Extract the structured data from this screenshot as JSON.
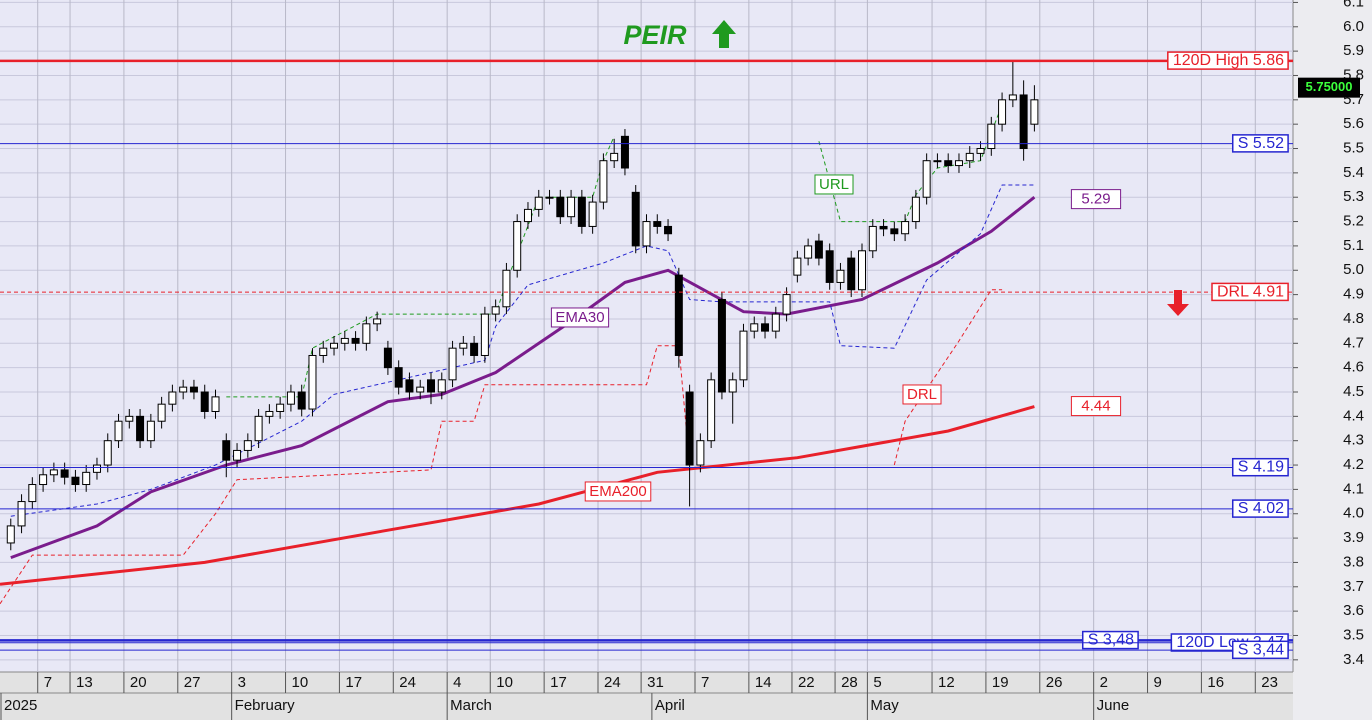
{
  "chart_data": {
    "type": "candlestick",
    "title": "PEIR",
    "open": [
      3.88,
      3.95,
      4.05,
      4.12,
      4.16,
      4.18,
      4.15,
      4.12,
      4.17,
      4.2,
      4.3,
      4.38,
      4.4,
      4.3,
      4.38,
      4.45,
      4.5,
      4.52,
      4.5,
      4.42,
      4.3,
      4.22,
      4.26,
      4.3,
      4.4,
      4.42,
      4.45,
      4.5,
      4.43,
      4.65,
      4.68,
      4.7,
      4.72,
      4.7,
      4.78,
      4.68,
      4.6,
      4.55,
      4.5,
      4.55,
      4.5,
      4.55,
      4.68,
      4.7,
      4.65,
      4.82,
      4.85,
      5.0,
      5.2,
      5.25,
      5.3,
      5.3,
      5.22,
      5.3,
      5.18,
      5.28,
      5.45,
      5.55,
      5.32,
      5.1,
      5.2,
      5.18,
      4.98,
      4.5,
      4.2,
      4.3,
      4.88,
      4.5,
      4.55,
      4.75,
      4.78,
      4.75,
      4.82,
      4.98,
      5.05,
      5.12,
      5.08,
      4.95,
      5.05,
      4.92,
      5.08,
      5.18,
      5.17,
      5.15,
      5.2,
      5.3,
      5.45,
      5.45,
      5.43,
      5.45,
      5.48,
      5.5,
      5.6,
      5.7,
      5.72,
      5.6
    ],
    "high": [
      3.98,
      4.08,
      4.15,
      4.19,
      4.21,
      4.21,
      4.18,
      4.2,
      4.23,
      4.33,
      4.41,
      4.43,
      4.43,
      4.41,
      4.48,
      4.53,
      4.55,
      4.55,
      4.53,
      4.51,
      4.33,
      4.29,
      4.33,
      4.43,
      4.45,
      4.48,
      4.53,
      4.53,
      4.68,
      4.71,
      4.73,
      4.75,
      4.75,
      4.81,
      4.83,
      4.71,
      4.63,
      4.58,
      4.55,
      4.58,
      4.58,
      4.71,
      4.73,
      4.73,
      4.85,
      4.88,
      5.03,
      5.23,
      5.28,
      5.33,
      5.33,
      5.33,
      5.33,
      5.33,
      5.31,
      5.48,
      5.54,
      5.58,
      5.35,
      5.23,
      5.23,
      5.21,
      5.01,
      4.53,
      4.33,
      4.58,
      4.91,
      4.58,
      4.78,
      4.81,
      4.81,
      4.85,
      4.93,
      5.08,
      5.13,
      5.15,
      5.11,
      5.03,
      5.08,
      5.11,
      5.21,
      5.21,
      5.2,
      5.23,
      5.33,
      5.48,
      5.48,
      5.48,
      5.48,
      5.51,
      5.53,
      5.63,
      5.73,
      5.86,
      5.78,
      5.76
    ],
    "low": [
      3.85,
      3.92,
      4.02,
      4.09,
      4.13,
      4.12,
      4.09,
      4.09,
      4.14,
      4.17,
      4.27,
      4.35,
      4.27,
      4.27,
      4.35,
      4.42,
      4.47,
      4.47,
      4.39,
      4.39,
      4.15,
      4.19,
      4.23,
      4.27,
      4.37,
      4.39,
      4.42,
      4.4,
      4.4,
      4.62,
      4.65,
      4.67,
      4.67,
      4.67,
      4.75,
      4.57,
      4.49,
      4.47,
      4.47,
      4.45,
      4.47,
      4.52,
      4.65,
      4.62,
      4.62,
      4.79,
      4.82,
      4.97,
      5.17,
      5.22,
      5.27,
      5.19,
      5.19,
      5.15,
      5.15,
      5.25,
      5.42,
      5.39,
      5.07,
      5.07,
      5.15,
      5.12,
      4.6,
      4.03,
      4.17,
      4.27,
      4.47,
      4.37,
      4.52,
      4.72,
      4.72,
      4.72,
      4.79,
      4.95,
      5.02,
      5.02,
      4.92,
      4.92,
      4.89,
      4.89,
      5.05,
      5.14,
      5.12,
      5.12,
      5.17,
      5.27,
      5.42,
      5.4,
      5.4,
      5.42,
      5.45,
      5.47,
      5.57,
      5.67,
      5.45,
      5.57
    ],
    "close": [
      3.95,
      4.05,
      4.12,
      4.16,
      4.18,
      4.15,
      4.12,
      4.17,
      4.2,
      4.3,
      4.38,
      4.4,
      4.3,
      4.38,
      4.45,
      4.5,
      4.52,
      4.5,
      4.42,
      4.48,
      4.22,
      4.26,
      4.3,
      4.4,
      4.42,
      4.45,
      4.5,
      4.43,
      4.65,
      4.68,
      4.7,
      4.72,
      4.7,
      4.78,
      4.8,
      4.6,
      4.52,
      4.5,
      4.52,
      4.5,
      4.55,
      4.68,
      4.7,
      4.65,
      4.82,
      4.85,
      5.0,
      5.2,
      5.25,
      5.3,
      5.3,
      5.22,
      5.3,
      5.18,
      5.28,
      5.45,
      5.48,
      5.42,
      5.1,
      5.2,
      5.18,
      5.15,
      4.65,
      4.2,
      4.3,
      4.55,
      4.5,
      4.55,
      4.75,
      4.78,
      4.75,
      4.82,
      4.9,
      5.05,
      5.1,
      5.05,
      4.95,
      5.0,
      4.92,
      5.08,
      5.18,
      5.17,
      5.15,
      5.2,
      5.3,
      5.45,
      5.45,
      5.43,
      5.45,
      5.48,
      5.5,
      5.6,
      5.7,
      5.72,
      5.5,
      5.7
    ],
    "xlim": [
      -1,
      119
    ],
    "xticks": [
      {
        "value": 2.5,
        "label": "7"
      },
      {
        "value": 5.5,
        "label": "13"
      },
      {
        "value": 10.5,
        "label": "20"
      },
      {
        "value": 15.5,
        "label": "27"
      },
      {
        "value": 20.5,
        "label": "3"
      },
      {
        "value": 25.5,
        "label": "10"
      },
      {
        "value": 30.5,
        "label": "17"
      },
      {
        "value": 35.5,
        "label": "24"
      },
      {
        "value": 40.5,
        "label": "4"
      },
      {
        "value": 44.5,
        "label": "10"
      },
      {
        "value": 49.5,
        "label": "17"
      },
      {
        "value": 54.5,
        "label": "24"
      },
      {
        "value": 58.5,
        "label": "31"
      },
      {
        "value": 63.5,
        "label": "7"
      },
      {
        "value": 68.5,
        "label": "14"
      },
      {
        "value": 72.5,
        "label": "22"
      },
      {
        "value": 76.5,
        "label": "28"
      },
      {
        "value": 79.5,
        "label": "5"
      },
      {
        "value": 85.5,
        "label": "12"
      },
      {
        "value": 90.5,
        "label": "19"
      },
      {
        "value": 95.5,
        "label": "26"
      },
      {
        "value": 100.5,
        "label": "2"
      },
      {
        "value": 105.5,
        "label": "9"
      },
      {
        "value": 110.5,
        "label": "16"
      },
      {
        "value": 115.5,
        "label": "23"
      }
    ],
    "month_ticks": [
      {
        "value": -1,
        "label": "2025"
      },
      {
        "value": 20.5,
        "label": "February"
      },
      {
        "value": 40.5,
        "label": "March"
      },
      {
        "value": 59.5,
        "label": "April"
      },
      {
        "value": 79.5,
        "label": "May"
      },
      {
        "value": 100.5,
        "label": "June"
      }
    ],
    "ylim": [
      3.35,
      6.11
    ],
    "yticks": [
      3.4,
      3.5,
      3.6,
      3.7,
      3.8,
      3.9,
      {
        "value": 4,
        "label": "4.0"
      },
      4.1,
      4.2,
      4.3,
      4.4,
      4.5,
      4.6,
      4.7,
      4.8,
      4.9,
      {
        "value": 5,
        "label": "5.0"
      },
      5.1,
      5.2,
      5.3,
      5.4,
      5.5,
      5.6,
      5.7,
      5.8,
      5.9,
      {
        "value": 6,
        "label": "6.0"
      },
      6.1
    ],
    "grid": true,
    "lines": [
      {
        "name": "EMA30",
        "color": "#7a1c8c",
        "width": 3,
        "x": [
          0,
          8,
          13,
          20,
          27,
          35,
          40,
          45,
          52,
          57,
          61,
          68,
          72,
          79,
          86,
          91,
          95
        ],
        "values": [
          3.82,
          3.95,
          4.09,
          4.2,
          4.28,
          4.46,
          4.49,
          4.58,
          4.79,
          4.95,
          5.0,
          4.83,
          4.82,
          4.88,
          5.03,
          5.16,
          5.3
        ],
        "end_label": 5.29
      },
      {
        "name": "EMA200",
        "color": "#e8202a",
        "width": 3,
        "x": [
          -1,
          18,
          36,
          49,
          60,
          73,
          87,
          95
        ],
        "values": [
          3.71,
          3.8,
          3.94,
          4.04,
          4.17,
          4.23,
          4.34,
          4.44
        ],
        "end_label": 4.44
      },
      {
        "name": "URL",
        "color": "#1f9a1f",
        "width": 1,
        "dash": true,
        "x": [
          20,
          27,
          28,
          34,
          45,
          46,
          49,
          54,
          55,
          56,
          null,
          75,
          77,
          83,
          84,
          86,
          90,
          92
        ],
        "values": [
          4.48,
          4.48,
          4.68,
          4.82,
          4.82,
          4.95,
          5.3,
          5.3,
          5.45,
          5.55,
          null,
          5.53,
          5.2,
          5.2,
          5.31,
          5.42,
          5.45,
          5.68
        ]
      },
      {
        "name": "DRL",
        "color": "#e8202a",
        "width": 1,
        "dash": true,
        "x": [
          -1,
          2,
          16,
          19,
          21,
          39,
          40,
          43,
          44,
          59,
          60,
          62,
          63,
          null,
          82,
          83,
          88,
          91,
          92
        ],
        "values": [
          3.63,
          3.83,
          3.83,
          4.0,
          4.14,
          4.18,
          4.38,
          4.38,
          4.53,
          4.53,
          4.69,
          4.69,
          4.2,
          null,
          4.2,
          4.38,
          4.71,
          4.92,
          4.92
        ]
      },
      {
        "color": "#2626d0",
        "width": 1,
        "dash": true,
        "x": [
          0,
          8,
          13,
          19,
          27,
          30,
          44,
          45,
          48,
          55,
          59,
          61,
          63,
          66,
          76,
          77,
          82,
          85,
          90,
          92,
          95
        ],
        "values": [
          3.99,
          4.04,
          4.1,
          4.2,
          4.38,
          4.49,
          4.63,
          4.77,
          4.94,
          5.03,
          5.1,
          5.08,
          4.88,
          4.87,
          4.87,
          4.69,
          4.68,
          4.96,
          5.15,
          5.35,
          5.35
        ]
      }
    ],
    "levels": [
      {
        "label": "120D High 5.86",
        "value": 5.86,
        "color": "#e8202a",
        "width": 2.5
      },
      {
        "label": "S 5.52",
        "value": 5.52,
        "color": "#2626d0",
        "width": 1
      },
      {
        "label": "DRL 4.91",
        "value": 4.91,
        "color": "#e8202a",
        "width": 1,
        "dash": true
      },
      {
        "label": "S 4.19",
        "value": 4.19,
        "color": "#2626d0",
        "width": 1
      },
      {
        "label": "S 4.02",
        "value": 4.02,
        "color": "#2626d0",
        "width": 1
      },
      {
        "label": "S 3,48",
        "value": 3.48,
        "color": "#2626d0",
        "width": 2.5
      },
      {
        "label": "120D Low 3,47",
        "value": 3.47,
        "color": "#2626d0",
        "width": 1
      },
      {
        "label": "S 3,44",
        "value": 3.44,
        "color": "#2626d0",
        "width": 1
      }
    ],
    "last_price": {
      "value": 5.75,
      "label": "5.75000"
    }
  }
}
